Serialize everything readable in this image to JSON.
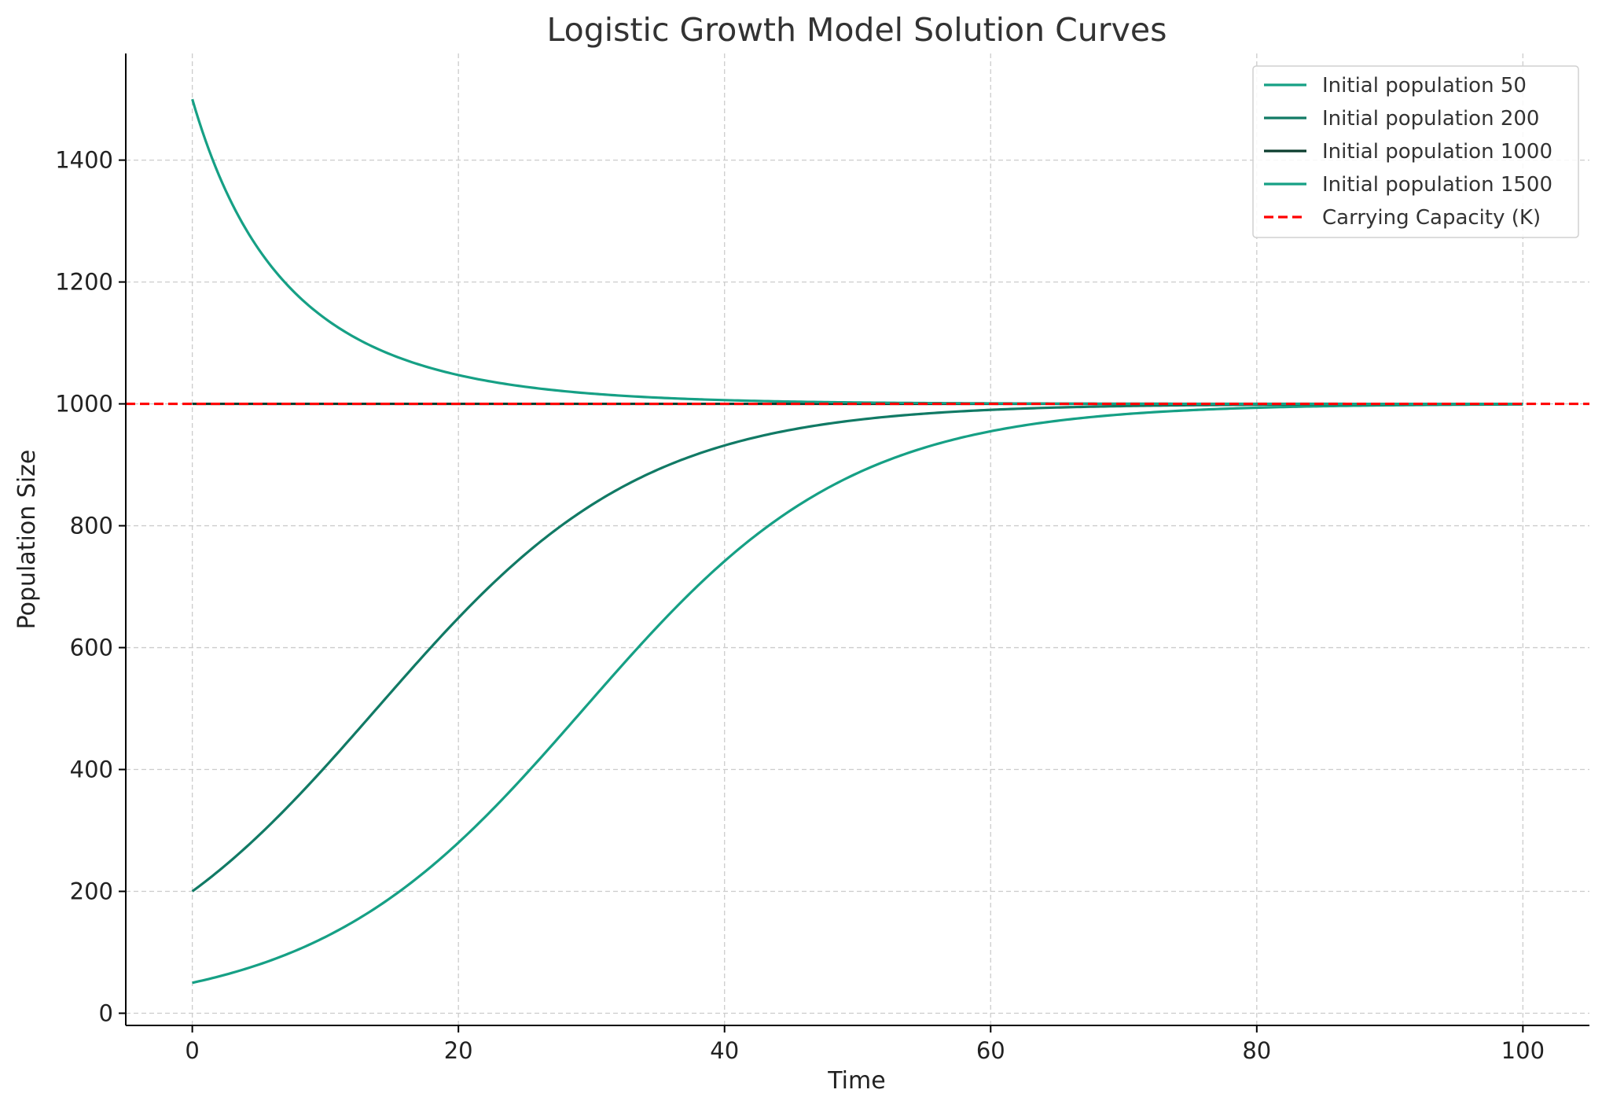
{
  "chart_data": {
    "type": "line",
    "title": "Logistic Growth Model Solution Curves",
    "xlabel": "Time",
    "ylabel": "Population Size",
    "xlim": [
      -5,
      105
    ],
    "ylim": [
      -20,
      1575
    ],
    "xticks": [
      0,
      20,
      40,
      60,
      80,
      100
    ],
    "yticks": [
      0,
      200,
      400,
      600,
      800,
      1000,
      1200,
      1400
    ],
    "grid": true,
    "legend_position": "top-right",
    "carrying_capacity": 1000,
    "growth_rate": 0.1,
    "series": [
      {
        "name": "Initial population 50",
        "color": "#16a085",
        "x": [
          0,
          5,
          10,
          15,
          20,
          25,
          30,
          35,
          40,
          45,
          50,
          55,
          60,
          65,
          70,
          75,
          80,
          85,
          90,
          95,
          100
        ],
        "y": [
          50,
          80,
          125,
          191,
          280,
          391,
          514,
          636,
          742,
          826,
          889,
          930,
          958,
          975,
          985,
          991,
          995,
          997,
          998,
          999,
          1000
        ]
      },
      {
        "name": "Initial population 200",
        "color": "#117a65",
        "x": [
          0,
          5,
          10,
          15,
          20,
          25,
          30,
          35,
          40,
          45,
          50,
          55,
          60,
          65,
          70,
          75,
          80,
          85,
          90,
          95,
          100
        ],
        "y": [
          200,
          292,
          405,
          528,
          649,
          753,
          834,
          892,
          932,
          958,
          974,
          984,
          990,
          994,
          996,
          998,
          999,
          999,
          1000,
          1000,
          1000
        ]
      },
      {
        "name": "Initial population 1000",
        "color": "#0b3d2e",
        "x": [
          0,
          100
        ],
        "y": [
          1000,
          1000
        ]
      },
      {
        "name": "Initial population 1500",
        "color": "#16a085",
        "x": [
          0,
          5,
          10,
          15,
          20,
          25,
          30,
          35,
          40,
          45,
          50,
          55,
          60,
          65,
          70,
          75,
          80,
          85,
          90,
          95,
          100
        ],
        "y": [
          1500,
          1263,
          1146,
          1081,
          1046,
          1027,
          1015,
          1009,
          1005,
          1003,
          1002,
          1001,
          1001,
          1000,
          1000,
          1000,
          1000,
          1000,
          1000,
          1000,
          1000
        ]
      },
      {
        "name": "Carrying Capacity (K)",
        "color": "#ff0000",
        "style": "dashed",
        "x": [
          -5,
          105
        ],
        "y": [
          1000,
          1000
        ]
      }
    ]
  }
}
